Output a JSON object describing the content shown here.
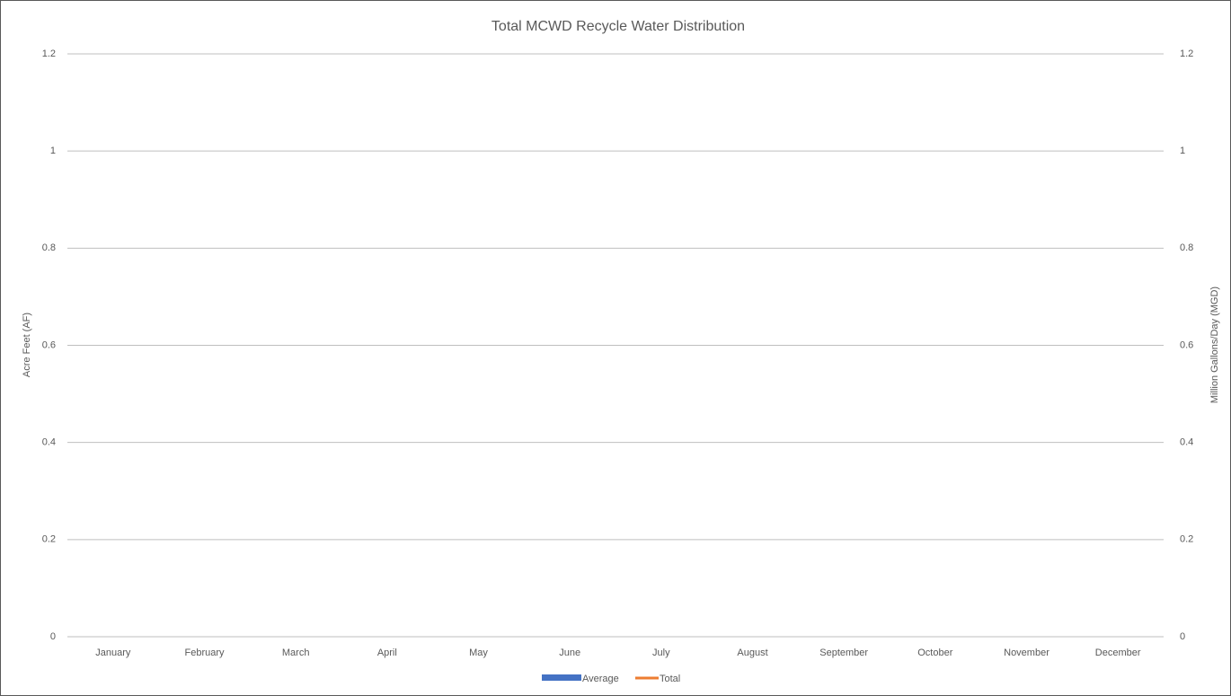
{
  "chart_data": {
    "type": "combo",
    "title": "Total MCWD Recycle Water Distribution",
    "y_label": "Acre Feet (AF)",
    "y2_label": "Million Gallons/Day (MGD)",
    "categories": [
      "January",
      "February",
      "March",
      "April",
      "May",
      "June",
      "July",
      "August",
      "September",
      "October",
      "November",
      "December"
    ],
    "series": [
      {
        "name": "Average",
        "type": "bar",
        "color": "#4472c4",
        "values": [
          null,
          null,
          null,
          null,
          null,
          null,
          null,
          null,
          null,
          null,
          null,
          null
        ]
      },
      {
        "name": "Total",
        "type": "line",
        "axis": "y2",
        "color": "#ed7d31",
        "values": [
          null,
          null,
          null,
          null,
          null,
          null,
          null,
          null,
          null,
          null,
          null,
          null
        ]
      }
    ],
    "ylim": [
      0,
      1.2
    ],
    "yticks": [
      0,
      0.2,
      0.4,
      0.6,
      0.8,
      1,
      1.2
    ],
    "y2lim": [
      0,
      1.2
    ],
    "y2ticks": [
      0,
      0.2,
      0.4,
      0.6,
      0.8,
      1,
      1.2
    ],
    "grid": true
  }
}
